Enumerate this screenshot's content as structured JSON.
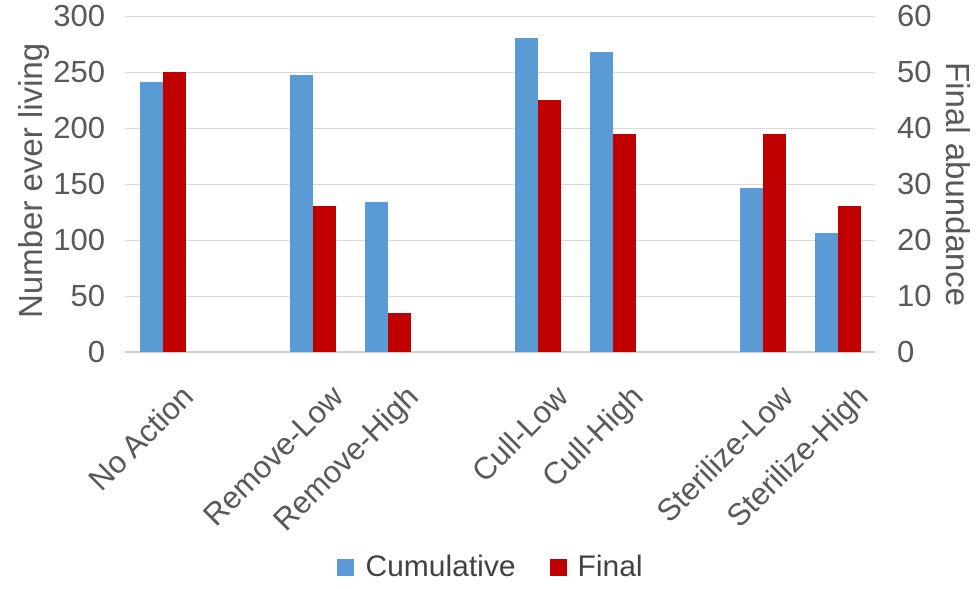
{
  "chart_data": {
    "type": "bar",
    "title": "",
    "categories": [
      "No Action",
      "Remove-Low",
      "Remove-High",
      "Cull-Low",
      "Cull-High",
      "Sterilize-Low",
      "Sterilize-High"
    ],
    "series": [
      {
        "name": "Cumulative",
        "axis": "left",
        "color": "#5b9bd5",
        "values": [
          241,
          247,
          134,
          280,
          268,
          146,
          106
        ]
      },
      {
        "name": "Final",
        "axis": "right",
        "color": "#c00000",
        "values": [
          50,
          26,
          7,
          45,
          39,
          39,
          26
        ]
      }
    ],
    "left_axis": {
      "label": "Number ever living",
      "min": 0,
      "max": 300,
      "ticks": [
        300,
        250,
        200,
        150,
        100,
        50,
        0
      ]
    },
    "right_axis": {
      "label": "Final abundance",
      "min": 0,
      "max": 60,
      "ticks": [
        60,
        50,
        40,
        30,
        20,
        10,
        0
      ]
    },
    "legend": {
      "position": "bottom"
    },
    "grid": true,
    "layout": {
      "total_slots": 10,
      "slot_indices": [
        0,
        2,
        3,
        5,
        6,
        8,
        9
      ]
    },
    "colors": {
      "grid": "#d9d9d9",
      "axis_line": "#cfcfcf",
      "text": "#595959"
    }
  }
}
